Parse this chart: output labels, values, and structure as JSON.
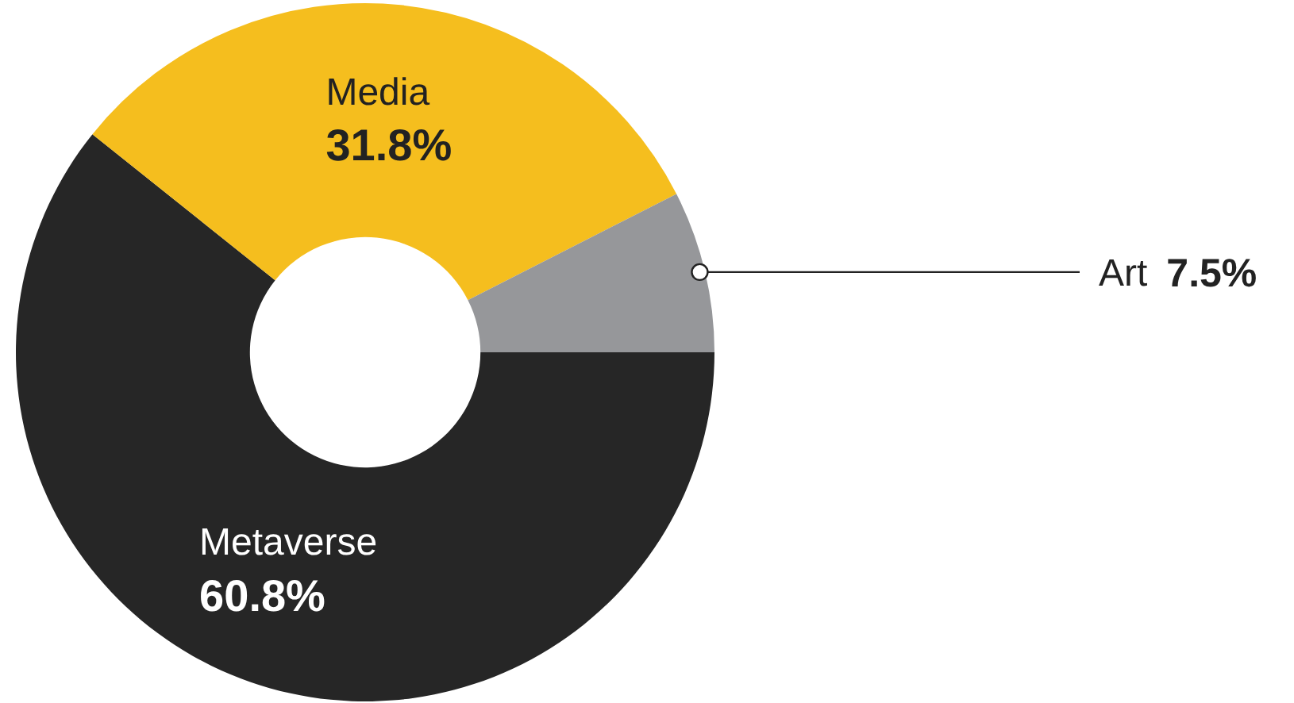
{
  "chart_data": {
    "type": "donut",
    "categories": [
      "Metaverse",
      "Media",
      "Art"
    ],
    "values": [
      60.8,
      31.8,
      7.5
    ],
    "colors": [
      "#262626",
      "#f5be1e",
      "#96979a"
    ],
    "value_labels": [
      "60.8%",
      "31.8%",
      "7.5%"
    ],
    "legend": false
  }
}
